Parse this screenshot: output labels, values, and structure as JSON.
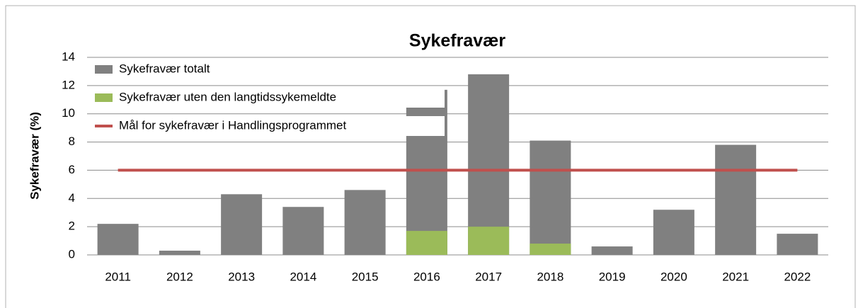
{
  "chart_data": {
    "type": "bar",
    "title": "Sykefravær",
    "y_label": "Sykefravær (%)",
    "categories": [
      "2011",
      "2012",
      "2013",
      "2014",
      "2015",
      "2016",
      "2017",
      "2018",
      "2019",
      "2020",
      "2021",
      "2022"
    ],
    "series": [
      {
        "name": "Sykefravær totalt",
        "type": "bar",
        "color": "#808080",
        "values": [
          2.2,
          0.3,
          4.3,
          3.4,
          4.6,
          11.7,
          12.8,
          8.1,
          0.6,
          3.2,
          7.8,
          1.5
        ]
      },
      {
        "name": "Sykefravær uten den langtidssykemeldte",
        "type": "bar",
        "color": "#9bbb59",
        "values": [
          null,
          null,
          null,
          null,
          null,
          1.7,
          2.0,
          0.8,
          null,
          null,
          null,
          null
        ]
      },
      {
        "name": "Mål for sykefravær i Handlingsprogrammet",
        "type": "line",
        "color": "#c0504d",
        "values": [
          6,
          6,
          6,
          6,
          6,
          6,
          6,
          6,
          6,
          6,
          6,
          6
        ]
      }
    ],
    "ylim": [
      0,
      14
    ],
    "yticks": [
      0,
      2,
      4,
      6,
      8,
      10,
      12,
      14
    ],
    "grid": true,
    "legend": "upper-left"
  }
}
